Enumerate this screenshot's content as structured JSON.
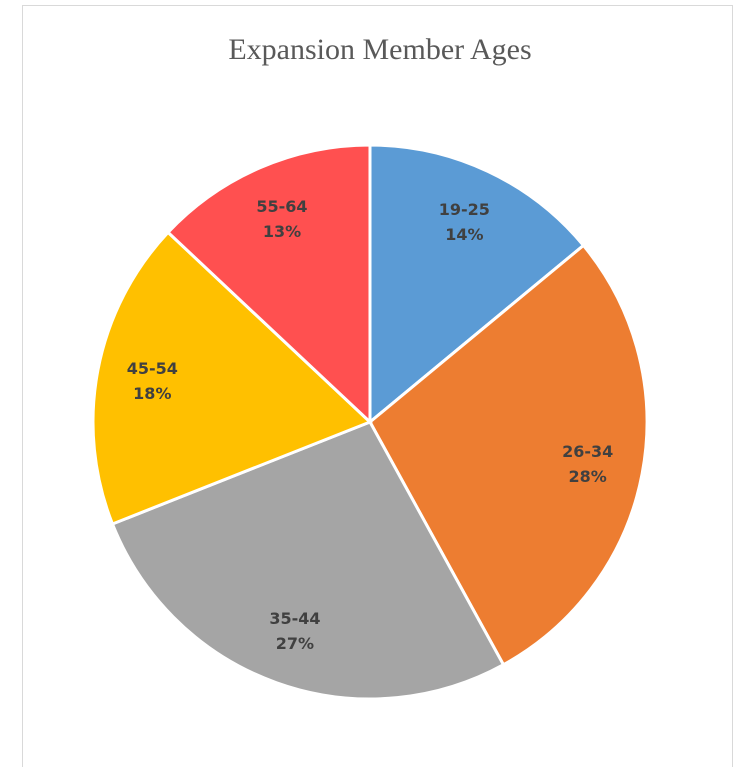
{
  "chart_data": {
    "type": "pie",
    "title": "Expansion Member Ages",
    "categories": [
      "19-25",
      "26-34",
      "35-44",
      "45-54",
      "55-64"
    ],
    "values": [
      14,
      28,
      27,
      18,
      13
    ],
    "value_labels": [
      "14%",
      "28%",
      "27%",
      "18%",
      "13%"
    ],
    "colors": [
      "#5b9bd5",
      "#ed7d31",
      "#a5a5a5",
      "#ffc000",
      "#ff5050"
    ]
  }
}
